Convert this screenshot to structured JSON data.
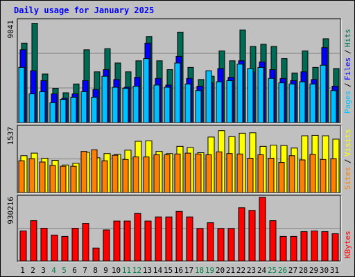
{
  "title": "Daily usage for January 2025",
  "colors": {
    "hits": "#006b54",
    "files": "#0000ff",
    "pages": "#00c0ff",
    "visits": "#ffff00",
    "sites": "#ff8000",
    "kbytes": "#ff0000",
    "weekend_label": "#008040",
    "weekday_label": "#000000",
    "title": "#0000ff",
    "background": "#c0c0c0"
  },
  "chart_data": [
    {
      "type": "bar",
      "categories": [
        "1",
        "2",
        "3",
        "4",
        "5",
        "6",
        "7",
        "8",
        "9",
        "10",
        "11",
        "12",
        "13",
        "14",
        "15",
        "16",
        "17",
        "18",
        "19",
        "20",
        "21",
        "22",
        "23",
        "24",
        "25",
        "26",
        "27",
        "28",
        "29",
        "30",
        "31"
      ],
      "weekend_days": [
        "4",
        "5",
        "11",
        "12",
        "18",
        "19",
        "25",
        "26"
      ],
      "ylabel_max": "9041",
      "ymax": 9041,
      "legend": [
        "Pages",
        "Files",
        "Hits"
      ],
      "series": [
        {
          "name": "Hits",
          "values": [
            7200,
            9000,
            4400,
            3100,
            2700,
            3500,
            6600,
            4600,
            6700,
            5400,
            4600,
            5600,
            7800,
            5600,
            4800,
            8200,
            5000,
            3900,
            4200,
            6500,
            5600,
            8400,
            6900,
            7100,
            6900,
            5800,
            4500,
            6500,
            5000,
            7600,
            4900
          ]
        },
        {
          "name": "Files",
          "values": [
            6600,
            4700,
            3800,
            2600,
            2200,
            2600,
            3800,
            3000,
            4800,
            3900,
            3200,
            4100,
            7200,
            4000,
            3400,
            6000,
            4000,
            3300,
            3600,
            4900,
            4100,
            5600,
            4600,
            5500,
            4800,
            4000,
            3800,
            4600,
            3900,
            6800,
            3300
          ]
        },
        {
          "name": "Pages",
          "values": [
            5000,
            2600,
            2800,
            1800,
            2100,
            2300,
            2800,
            2300,
            4200,
            3200,
            3100,
            3300,
            5800,
            3400,
            3200,
            5400,
            3500,
            2900,
            4700,
            3700,
            3800,
            5300,
            4900,
            5000,
            4000,
            3600,
            3500,
            3700,
            3500,
            5200,
            2900
          ]
        }
      ]
    },
    {
      "type": "bar",
      "categories": [
        "1",
        "2",
        "3",
        "4",
        "5",
        "6",
        "7",
        "8",
        "9",
        "10",
        "11",
        "12",
        "13",
        "14",
        "15",
        "16",
        "17",
        "18",
        "19",
        "20",
        "21",
        "22",
        "23",
        "24",
        "25",
        "26",
        "27",
        "28",
        "29",
        "30",
        "31"
      ],
      "ylabel_max": "1537",
      "ymax": 1537,
      "legend": [
        "Sites",
        "Visits"
      ],
      "series": [
        {
          "name": "Visits",
          "values": [
            870,
            930,
            810,
            760,
            650,
            690,
            950,
            820,
            920,
            900,
            1000,
            1210,
            1220,
            970,
            920,
            1090,
            1060,
            940,
            1310,
            1460,
            1320,
            1400,
            1410,
            1090,
            1120,
            1110,
            1050,
            1340,
            1350,
            1340,
            1260
          ]
        },
        {
          "name": "Sites",
          "values": [
            750,
            800,
            720,
            640,
            620,
            620,
            970,
            1010,
            750,
            880,
            780,
            840,
            840,
            890,
            890,
            910,
            930,
            910,
            890,
            960,
            920,
            910,
            810,
            890,
            810,
            710,
            870,
            770,
            900,
            780,
            800
          ]
        }
      ]
    },
    {
      "type": "bar",
      "categories": [
        "1",
        "2",
        "3",
        "4",
        "5",
        "6",
        "7",
        "8",
        "9",
        "10",
        "11",
        "12",
        "13",
        "14",
        "15",
        "16",
        "17",
        "18",
        "19",
        "20",
        "21",
        "22",
        "23",
        "24",
        "25",
        "26",
        "27",
        "28",
        "29",
        "30",
        "31"
      ],
      "ylabel_max": "930216",
      "ymax": 930216,
      "legend": [
        "KBytes"
      ],
      "series": [
        {
          "name": "KBytes",
          "values": [
            440000,
            590000,
            480000,
            380000,
            360000,
            480000,
            550000,
            190000,
            455000,
            585000,
            585000,
            695000,
            585000,
            645000,
            645000,
            725000,
            645000,
            475000,
            560000,
            475000,
            475000,
            780000,
            740000,
            930000,
            590000,
            360000,
            360000,
            430000,
            440000,
            430000,
            400000
          ]
        }
      ]
    }
  ]
}
